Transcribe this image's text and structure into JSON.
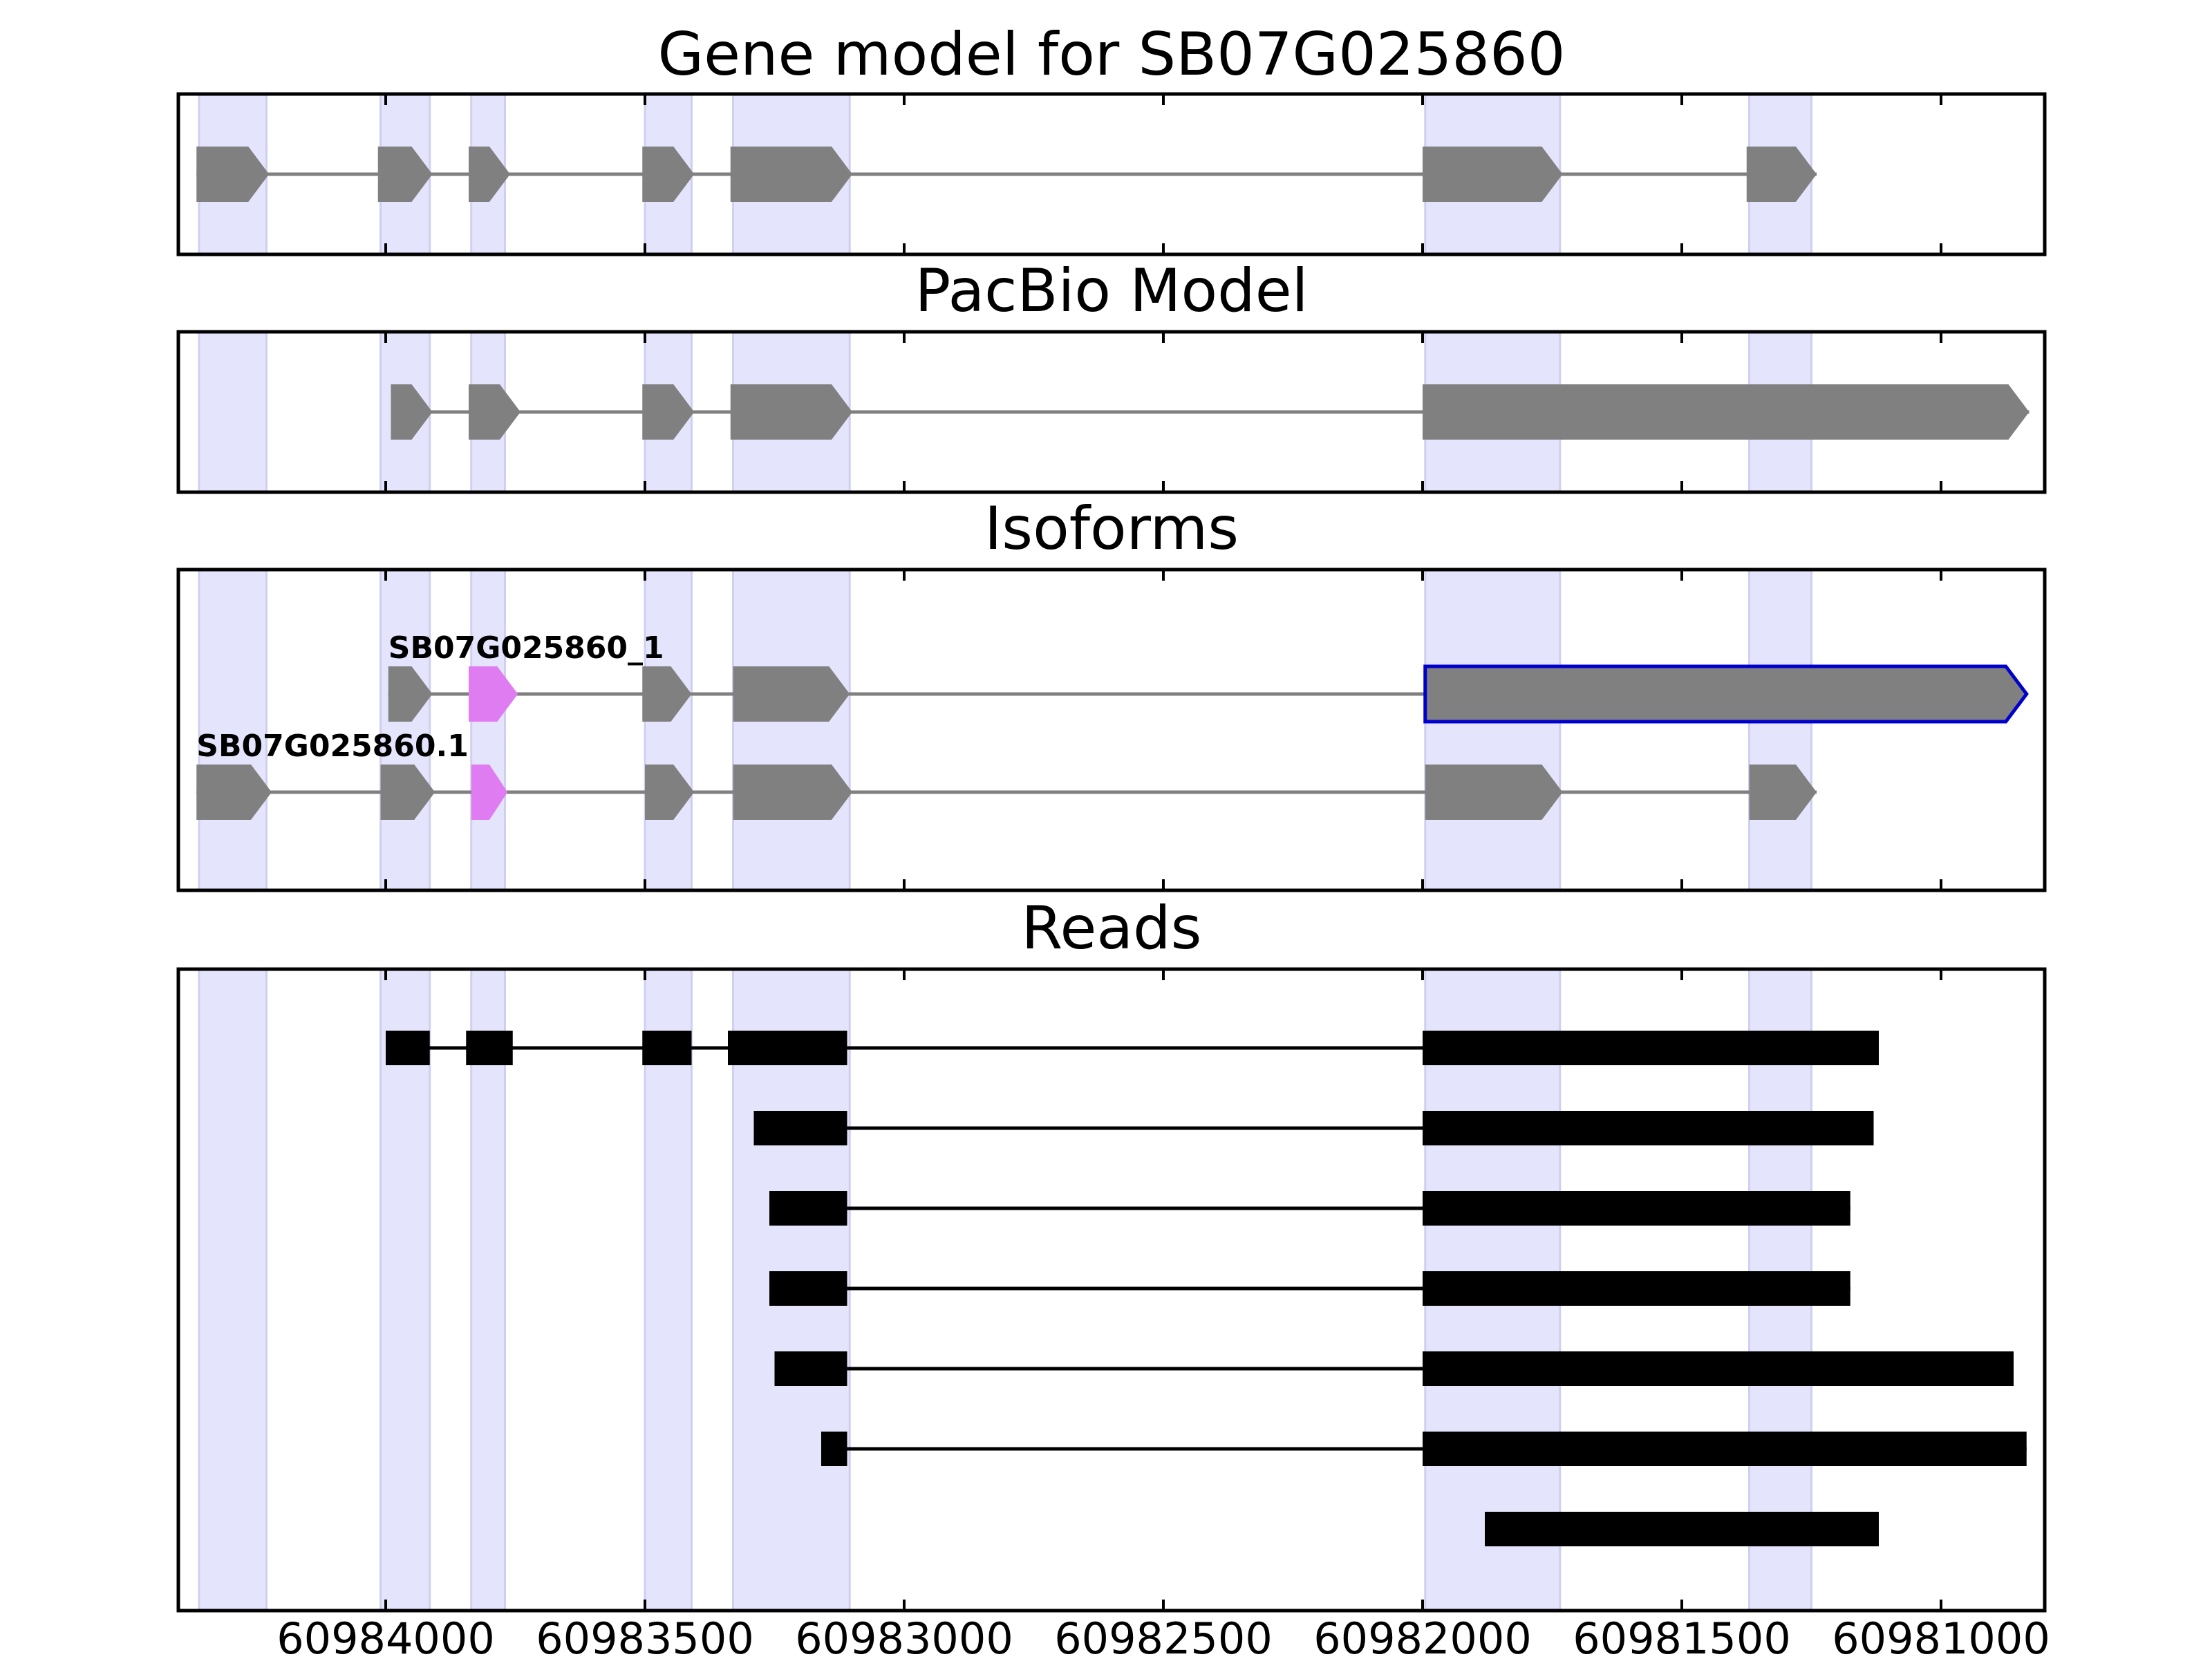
{
  "chart_data": {
    "type": "gene_model_diagram",
    "xaxis": {
      "reversed": true,
      "range": [
        60984400,
        60980800
      ],
      "ticks": [
        60984000,
        60983500,
        60983000,
        60982500,
        60982000,
        60981500,
        60981000
      ],
      "tick_labels": [
        "60984000",
        "60983500",
        "60983000",
        "60982500",
        "60982000",
        "60981500",
        "60981000"
      ]
    },
    "shaded_regions": [
      [
        60984360,
        60984230
      ],
      [
        60984010,
        60983915
      ],
      [
        60983835,
        60983770
      ],
      [
        60983500,
        60983410
      ],
      [
        60983330,
        60983105
      ],
      [
        60981995,
        60981735
      ],
      [
        60981370,
        60981250
      ]
    ],
    "panels": [
      {
        "title": "Gene model for SB07G025860",
        "tracks": [
          {
            "label": "",
            "exon_color": "grey",
            "exons": [
              [
                60984365,
                60984225
              ],
              [
                60984015,
                60983910
              ],
              [
                60983840,
                60983760
              ],
              [
                60983505,
                60983405
              ],
              [
                60983335,
                60983100
              ],
              [
                60982000,
                60981730
              ],
              [
                60981375,
                60981240
              ]
            ],
            "highlight": [],
            "outlined": []
          }
        ]
      },
      {
        "title": "PacBio Model",
        "tracks": [
          {
            "label": "",
            "exon_color": "grey",
            "exons": [
              [
                60983990,
                60983910
              ],
              [
                60983840,
                60983740
              ],
              [
                60983505,
                60983405
              ],
              [
                60983335,
                60983100
              ],
              [
                60982000,
                60980830
              ]
            ],
            "highlight": [],
            "outlined": []
          }
        ]
      },
      {
        "title": "Isoforms",
        "tracks": [
          {
            "label": "SB07G025860_1",
            "exon_color": "grey",
            "exons": [
              [
                60983995,
                60983910
              ],
              [
                60983840,
                60983745
              ],
              [
                60983505,
                60983410
              ],
              [
                60983330,
                60983105
              ],
              [
                60981995,
                60980835
              ]
            ],
            "highlight": [
              1
            ],
            "outlined": [
              4
            ]
          },
          {
            "label": "SB07G025860.1",
            "exon_color": "grey",
            "exons": [
              [
                60984365,
                60984220
              ],
              [
                60984010,
                60983905
              ],
              [
                60983835,
                60983765
              ],
              [
                60983500,
                60983405
              ],
              [
                60983330,
                60983100
              ],
              [
                60981995,
                60981730
              ],
              [
                60981370,
                60981240
              ]
            ],
            "highlight": [
              2
            ],
            "outlined": []
          }
        ]
      },
      {
        "title": "Reads",
        "reads": [
          [
            [
              60984000,
              60983915
            ],
            [
              60983845,
              60983755
            ],
            [
              60983505,
              60983410
            ],
            [
              60983340,
              60983110
            ],
            [
              60982000,
              60981120
            ]
          ],
          [
            [
              60983290,
              60983110
            ],
            [
              60982000,
              60981130
            ]
          ],
          [
            [
              60983260,
              60983110
            ],
            [
              60982000,
              60981175
            ]
          ],
          [
            [
              60983260,
              60983110
            ],
            [
              60982000,
              60981175
            ]
          ],
          [
            [
              60983250,
              60983110
            ],
            [
              60982000,
              60980860
            ]
          ],
          [
            [
              60983160,
              60983110
            ],
            [
              60982000,
              60980835
            ]
          ],
          [
            [
              60981880,
              60981120
            ]
          ]
        ]
      }
    ]
  }
}
